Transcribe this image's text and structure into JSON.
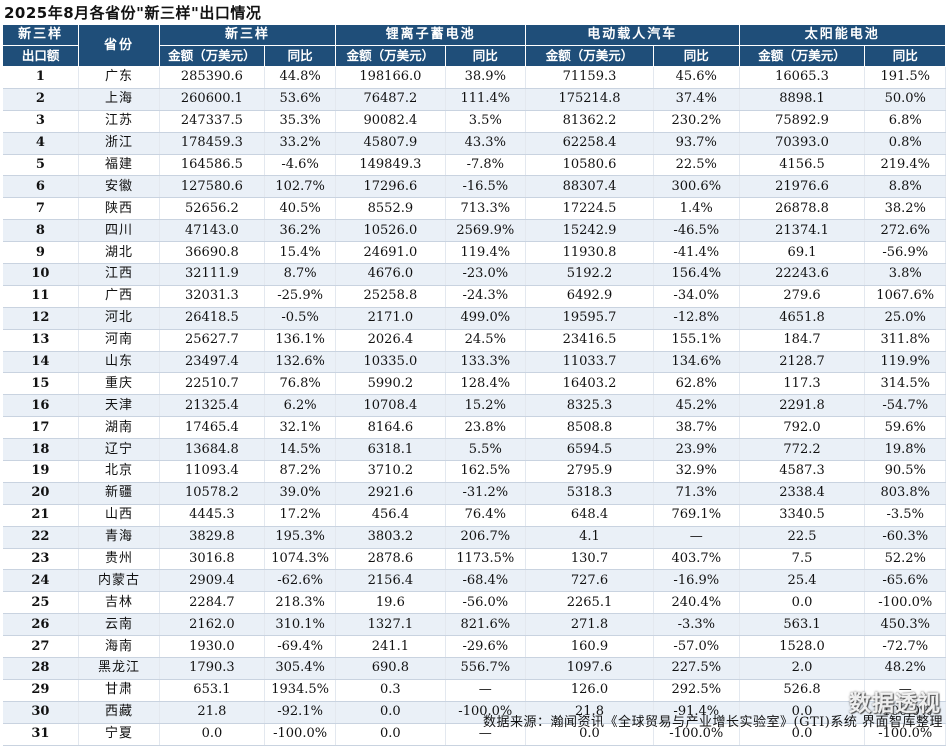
{
  "title": "2025年8月各省份\"新三样\"出口情况",
  "header": {
    "col_rank_l1": "新三样",
    "col_rank_l2": "出口额",
    "col_province": "省份",
    "groups": [
      "新三样",
      "锂离子蓄电池",
      "电动载人汽车",
      "太阳能电池"
    ],
    "amount_label": "金额（万美元）",
    "yoy_label": "同比"
  },
  "rows": [
    {
      "rank": "1",
      "province": "广东",
      "v": [
        "285390.6",
        "44.8%",
        "198166.0",
        "38.9%",
        "71159.3",
        "45.6%",
        "16065.3",
        "191.5%"
      ]
    },
    {
      "rank": "2",
      "province": "上海",
      "v": [
        "260600.1",
        "53.6%",
        "76487.2",
        "111.4%",
        "175214.8",
        "37.4%",
        "8898.1",
        "50.0%"
      ]
    },
    {
      "rank": "3",
      "province": "江苏",
      "v": [
        "247337.5",
        "35.3%",
        "90082.4",
        "3.5%",
        "81362.2",
        "230.2%",
        "75892.9",
        "6.8%"
      ]
    },
    {
      "rank": "4",
      "province": "浙江",
      "v": [
        "178459.3",
        "33.2%",
        "45807.9",
        "43.3%",
        "62258.4",
        "93.7%",
        "70393.0",
        "0.8%"
      ]
    },
    {
      "rank": "5",
      "province": "福建",
      "v": [
        "164586.5",
        "-4.6%",
        "149849.3",
        "-7.8%",
        "10580.6",
        "22.5%",
        "4156.5",
        "219.4%"
      ]
    },
    {
      "rank": "6",
      "province": "安徽",
      "v": [
        "127580.6",
        "102.7%",
        "17296.6",
        "-16.5%",
        "88307.4",
        "300.6%",
        "21976.6",
        "8.8%"
      ]
    },
    {
      "rank": "7",
      "province": "陕西",
      "v": [
        "52656.2",
        "40.5%",
        "8552.9",
        "713.3%",
        "17224.5",
        "1.4%",
        "26878.8",
        "38.2%"
      ]
    },
    {
      "rank": "8",
      "province": "四川",
      "v": [
        "47143.0",
        "36.2%",
        "10526.0",
        "2569.9%",
        "15242.9",
        "-46.5%",
        "21374.1",
        "272.6%"
      ]
    },
    {
      "rank": "9",
      "province": "湖北",
      "v": [
        "36690.8",
        "15.4%",
        "24691.0",
        "119.4%",
        "11930.8",
        "-41.4%",
        "69.1",
        "-56.9%"
      ]
    },
    {
      "rank": "10",
      "province": "江西",
      "v": [
        "32111.9",
        "8.7%",
        "4676.0",
        "-23.0%",
        "5192.2",
        "156.4%",
        "22243.6",
        "3.8%"
      ]
    },
    {
      "rank": "11",
      "province": "广西",
      "v": [
        "32031.3",
        "-25.9%",
        "25258.8",
        "-24.3%",
        "6492.9",
        "-34.0%",
        "279.6",
        "1067.6%"
      ]
    },
    {
      "rank": "12",
      "province": "河北",
      "v": [
        "26418.5",
        "-0.5%",
        "2171.0",
        "499.0%",
        "19595.7",
        "-12.8%",
        "4651.8",
        "25.0%"
      ]
    },
    {
      "rank": "13",
      "province": "河南",
      "v": [
        "25627.7",
        "136.1%",
        "2026.4",
        "24.5%",
        "23416.5",
        "155.1%",
        "184.7",
        "311.8%"
      ]
    },
    {
      "rank": "14",
      "province": "山东",
      "v": [
        "23497.4",
        "132.6%",
        "10335.0",
        "133.3%",
        "11033.7",
        "134.6%",
        "2128.7",
        "119.9%"
      ]
    },
    {
      "rank": "15",
      "province": "重庆",
      "v": [
        "22510.7",
        "76.8%",
        "5990.2",
        "128.4%",
        "16403.2",
        "62.8%",
        "117.3",
        "314.5%"
      ]
    },
    {
      "rank": "16",
      "province": "天津",
      "v": [
        "21325.4",
        "6.2%",
        "10708.4",
        "15.2%",
        "8325.3",
        "45.2%",
        "2291.8",
        "-54.7%"
      ]
    },
    {
      "rank": "17",
      "province": "湖南",
      "v": [
        "17465.4",
        "32.1%",
        "8164.6",
        "23.8%",
        "8508.8",
        "38.7%",
        "792.0",
        "59.6%"
      ]
    },
    {
      "rank": "18",
      "province": "辽宁",
      "v": [
        "13684.8",
        "14.5%",
        "6318.1",
        "5.5%",
        "6594.5",
        "23.9%",
        "772.2",
        "19.8%"
      ]
    },
    {
      "rank": "19",
      "province": "北京",
      "v": [
        "11093.4",
        "87.2%",
        "3710.2",
        "162.5%",
        "2795.9",
        "32.9%",
        "4587.3",
        "90.5%"
      ]
    },
    {
      "rank": "20",
      "province": "新疆",
      "v": [
        "10578.2",
        "39.0%",
        "2921.6",
        "-31.2%",
        "5318.3",
        "71.3%",
        "2338.4",
        "803.8%"
      ]
    },
    {
      "rank": "21",
      "province": "山西",
      "v": [
        "4445.3",
        "17.2%",
        "456.4",
        "76.4%",
        "648.4",
        "769.1%",
        "3340.5",
        "-3.5%"
      ]
    },
    {
      "rank": "22",
      "province": "青海",
      "v": [
        "3829.8",
        "195.3%",
        "3803.2",
        "206.7%",
        "4.1",
        "—",
        "22.5",
        "-60.3%"
      ]
    },
    {
      "rank": "23",
      "province": "贵州",
      "v": [
        "3016.8",
        "1074.3%",
        "2878.6",
        "1173.5%",
        "130.7",
        "403.7%",
        "7.5",
        "52.2%"
      ]
    },
    {
      "rank": "24",
      "province": "内蒙古",
      "v": [
        "2909.4",
        "-62.6%",
        "2156.4",
        "-68.4%",
        "727.6",
        "-16.9%",
        "25.4",
        "-65.6%"
      ]
    },
    {
      "rank": "25",
      "province": "吉林",
      "v": [
        "2284.7",
        "218.3%",
        "19.6",
        "-56.0%",
        "2265.1",
        "240.4%",
        "0.0",
        "-100.0%"
      ]
    },
    {
      "rank": "26",
      "province": "云南",
      "v": [
        "2162.0",
        "310.1%",
        "1327.1",
        "821.6%",
        "271.8",
        "-3.3%",
        "563.1",
        "450.3%"
      ]
    },
    {
      "rank": "27",
      "province": "海南",
      "v": [
        "1930.0",
        "-69.4%",
        "241.1",
        "-29.6%",
        "160.9",
        "-57.0%",
        "1528.0",
        "-72.7%"
      ]
    },
    {
      "rank": "28",
      "province": "黑龙江",
      "v": [
        "1790.3",
        "305.4%",
        "690.8",
        "556.7%",
        "1097.6",
        "227.5%",
        "2.0",
        "48.2%"
      ]
    },
    {
      "rank": "29",
      "province": "甘肃",
      "v": [
        "653.1",
        "1934.5%",
        "0.3",
        "—",
        "126.0",
        "292.5%",
        "526.8",
        "—"
      ]
    },
    {
      "rank": "30",
      "province": "西藏",
      "v": [
        "21.8",
        "-92.1%",
        "0.0",
        "-100.0%",
        "21.8",
        "-91.4%",
        "0.0",
        "-100.0%"
      ]
    },
    {
      "rank": "31",
      "province": "宁夏",
      "v": [
        "0.0",
        "-100.0%",
        "0.0",
        "—",
        "0.0",
        "-100.0%",
        "0.0",
        "-100.0%"
      ]
    }
  ],
  "source": "数据来源：瀚闻资讯《全球贸易与产业增长实验室》(GTI)系统  界面智库整理",
  "watermark": "数据透视",
  "colors": {
    "header_bg": "#1f4e79",
    "header_text": "#ffffff",
    "stripe": "#eaf0f7"
  }
}
